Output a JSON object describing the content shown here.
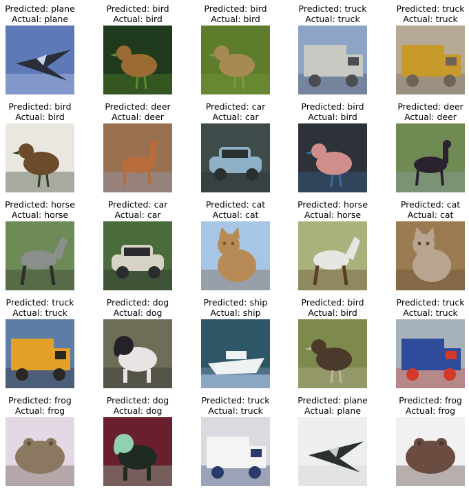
{
  "grid": {
    "cells": [
      {
        "predicted": "Predicted: plane",
        "actual": "Actual: plane",
        "bg": "#5e79b8",
        "fg": "#2a2d3a",
        "accent": "#c7d4ee",
        "icon": "plane-icon"
      },
      {
        "predicted": "Predicted: bird",
        "actual": "Actual: bird",
        "bg": "#1f3a1c",
        "fg": "#9a6b32",
        "accent": "#5c8f2a",
        "icon": "bird-icon"
      },
      {
        "predicted": "Predicted: bird",
        "actual": "Actual: bird",
        "bg": "#5d7d2c",
        "fg": "#a78a52",
        "accent": "#7e9a3c",
        "icon": "bird-icon"
      },
      {
        "predicted": "Predicted: truck",
        "actual": "Actual: truck",
        "bg": "#8da4c7",
        "fg": "#c9c9c4",
        "accent": "#4b4d52",
        "icon": "truck-icon"
      },
      {
        "predicted": "Predicted: truck",
        "actual": "Actual: truck",
        "bg": "#b6aa97",
        "fg": "#c79a2a",
        "accent": "#6e6356",
        "icon": "truck-icon"
      },
      {
        "predicted": "Predicted: bird",
        "actual": "Actual: bird",
        "bg": "#e9e7e0",
        "fg": "#6b4b2a",
        "accent": "#2f3a22",
        "icon": "bird-icon"
      },
      {
        "predicted": "Predicted: deer",
        "actual": "Actual: deer",
        "bg": "#9a7150",
        "fg": "#b86c3a",
        "accent": "#8ea4c8",
        "icon": "deer-icon"
      },
      {
        "predicted": "Predicted: car",
        "actual": "Actual: car",
        "bg": "#3f4a4a",
        "fg": "#8db0c6",
        "accent": "#2a3030",
        "icon": "car-icon"
      },
      {
        "predicted": "Predicted: bird",
        "actual": "Actual: bird",
        "bg": "#2d3138",
        "fg": "#cf8d8c",
        "accent": "#3a6aa0",
        "icon": "bird-icon"
      },
      {
        "predicted": "Predicted: deer",
        "actual": "Actual: deer",
        "bg": "#6f8a52",
        "fg": "#2b2230",
        "accent": "#8fa3b5",
        "icon": "deer-icon"
      },
      {
        "predicted": "Predicted: horse",
        "actual": "Actual: horse",
        "bg": "#6e8a56",
        "fg": "#8a8f8c",
        "accent": "#2d302c",
        "icon": "horse-icon"
      },
      {
        "predicted": "Predicted: car",
        "actual": "Actual: car",
        "bg": "#4a6b3c",
        "fg": "#d6d2c4",
        "accent": "#2a2b2e",
        "icon": "car-icon"
      },
      {
        "predicted": "Predicted: cat",
        "actual": "Actual: cat",
        "bg": "#a7c6e6",
        "fg": "#b88a56",
        "accent": "#7a5934",
        "icon": "cat-icon"
      },
      {
        "predicted": "Predicted: horse",
        "actual": "Actual: horse",
        "bg": "#a9b27a",
        "fg": "#e8e6e2",
        "accent": "#5b3b2a",
        "icon": "horse-icon"
      },
      {
        "predicted": "Predicted: cat",
        "actual": "Actual: cat",
        "bg": "#9a7a50",
        "fg": "#b7a58f",
        "accent": "#5d4a34",
        "icon": "cat-icon"
      },
      {
        "predicted": "Predicted: truck",
        "actual": "Actual: truck",
        "bg": "#5d7ca6",
        "fg": "#e3a227",
        "accent": "#2a2622",
        "icon": "truck-icon"
      },
      {
        "predicted": "Predicted: dog",
        "actual": "Actual: dog",
        "bg": "#6e6d58",
        "fg": "#e9e4e4",
        "accent": "#242228",
        "icon": "dog-icon"
      },
      {
        "predicted": "Predicted: ship",
        "actual": "Actual: ship",
        "bg": "#2d5666",
        "fg": "#eef2f2",
        "accent": "#8ba6c2",
        "icon": "ship-icon"
      },
      {
        "predicted": "Predicted: bird",
        "actual": "Actual: bird",
        "bg": "#7e8a4c",
        "fg": "#4a3a2c",
        "accent": "#bfb5a0",
        "icon": "bird-icon"
      },
      {
        "predicted": "Predicted: truck",
        "actual": "Actual: truck",
        "bg": "#a8b2bd",
        "fg": "#2e4c9a",
        "accent": "#d43a2a",
        "icon": "truck-icon"
      },
      {
        "predicted": "Predicted: frog",
        "actual": "Actual: frog",
        "bg": "#e4d8e4",
        "fg": "#8b7860",
        "accent": "#5a4c3c",
        "icon": "frog-icon"
      },
      {
        "predicted": "Predicted: dog",
        "actual": "Actual: dog",
        "bg": "#6a1f2e",
        "fg": "#1f2a22",
        "accent": "#8fd1b0",
        "icon": "dog-icon"
      },
      {
        "predicted": "Predicted: truck",
        "actual": "Actual: truck",
        "bg": "#d9dbe0",
        "fg": "#f4f4f4",
        "accent": "#2a3a6a",
        "icon": "truck-icon"
      },
      {
        "predicted": "Predicted: plane",
        "actual": "Actual: plane",
        "bg": "#eef0ee",
        "fg": "#2c3030",
        "accent": "#c9cfc9",
        "icon": "plane-icon"
      },
      {
        "predicted": "Predicted: frog",
        "actual": "Actual: frog",
        "bg": "#f1f1f1",
        "fg": "#6b4c40",
        "accent": "#4a3530",
        "icon": "frog-icon"
      }
    ]
  }
}
